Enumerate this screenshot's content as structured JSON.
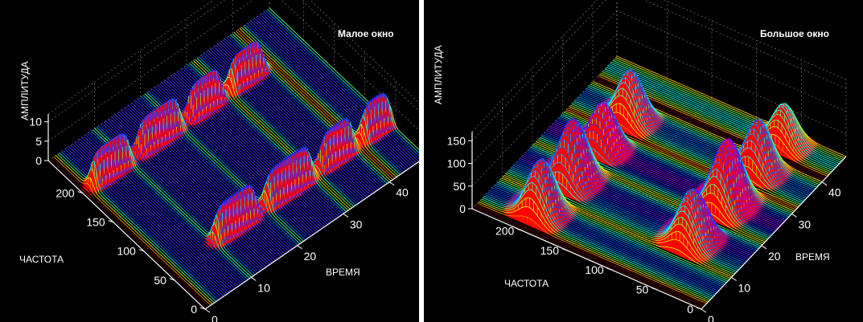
{
  "chart_data": [
    {
      "type": "surface",
      "title": "Малое окно",
      "zlabel": "АМПЛИТУДА",
      "xlabel": "ВРЕМЯ",
      "ylabel": "ЧАСТОТА",
      "x_ticks": [
        "0",
        "10",
        "20",
        "30",
        "40"
      ],
      "y_ticks": [
        "0",
        "50",
        "100",
        "150",
        "200"
      ],
      "z_ticks": [
        "0",
        "5",
        "10"
      ],
      "xlim": [
        0,
        48
      ],
      "ylim": [
        0,
        256
      ],
      "zlim": [
        0,
        12
      ],
      "grid": true,
      "colormap": "hsv",
      "ridges": [
        {
          "freq": 60,
          "t_start": 10,
          "t_end": 19,
          "amp": 9
        },
        {
          "freq": 60,
          "t_start": 21,
          "t_end": 31,
          "amp": 9
        },
        {
          "freq": 60,
          "t_start": 33,
          "t_end": 40,
          "amp": 9
        },
        {
          "freq": 60,
          "t_start": 42,
          "t_end": 48,
          "amp": 9
        },
        {
          "freq": 200,
          "t_start": 2,
          "t_end": 10,
          "amp": 9
        },
        {
          "freq": 200,
          "t_start": 12,
          "t_end": 21,
          "amp": 9
        },
        {
          "freq": 200,
          "t_start": 23,
          "t_end": 30,
          "amp": 9
        },
        {
          "freq": 200,
          "t_start": 32,
          "t_end": 39,
          "amp": 9
        }
      ]
    },
    {
      "type": "surface",
      "title": "Большое окно",
      "zlabel": "АМПЛИТУДА",
      "xlabel": "ВРЕМЯ",
      "ylabel": "ЧАСТОТА",
      "x_ticks": [
        "0",
        "10",
        "20",
        "30",
        "40"
      ],
      "y_ticks": [
        "0",
        "50",
        "100",
        "150",
        "200"
      ],
      "z_ticks": [
        "0",
        "50",
        "100",
        "150"
      ],
      "xlim": [
        0,
        48
      ],
      "ylim": [
        0,
        256
      ],
      "zlim": [
        0,
        170
      ],
      "grid": true,
      "colormap": "hsv",
      "ridges": [
        {
          "freq": 60,
          "t_start": 10,
          "t_end": 19,
          "amp": 110
        },
        {
          "freq": 60,
          "t_start": 21,
          "t_end": 31,
          "amp": 140
        },
        {
          "freq": 60,
          "t_start": 33,
          "t_end": 40,
          "amp": 110
        },
        {
          "freq": 60,
          "t_start": 42,
          "t_end": 48,
          "amp": 85
        },
        {
          "freq": 200,
          "t_start": 2,
          "t_end": 10,
          "amp": 115
        },
        {
          "freq": 200,
          "t_start": 12,
          "t_end": 21,
          "amp": 130
        },
        {
          "freq": 200,
          "t_start": 23,
          "t_end": 30,
          "amp": 95
        },
        {
          "freq": 200,
          "t_start": 32,
          "t_end": 39,
          "amp": 105
        }
      ]
    }
  ]
}
